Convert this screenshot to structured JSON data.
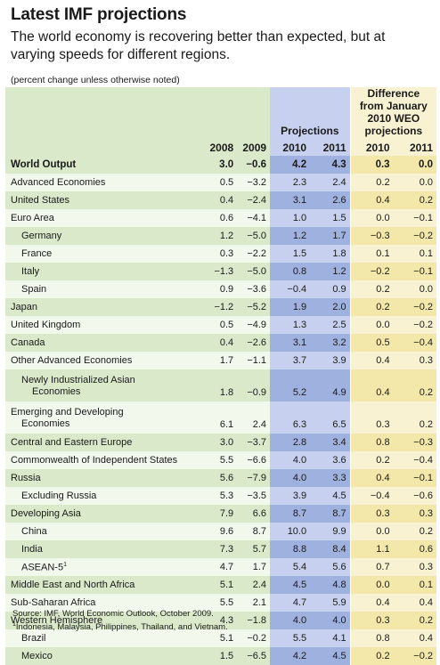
{
  "title": "Latest IMF projections",
  "subtitle": "The world economy is recovering better than expected, but at varying speeds for different regions.",
  "note": "(percent change unless otherwise noted)",
  "headers": {
    "projections": "Projections",
    "difference": "Difference from January 2010 WEO projections",
    "y2008": "2008",
    "y2009": "2009",
    "y2010": "2010",
    "y2011": "2011",
    "d2010": "2010",
    "d2011": "2011"
  },
  "rows": [
    {
      "label": "World Output",
      "v2008": "3.0",
      "v2009": "−0.6",
      "p2010": "4.2",
      "p2011": "4.3",
      "d2010": "0.3",
      "d2011": "0.0"
    },
    {
      "label": "Advanced Economies",
      "v2008": "0.5",
      "v2009": "−3.2",
      "p2010": "2.3",
      "p2011": "2.4",
      "d2010": "0.2",
      "d2011": "0.0"
    },
    {
      "label": "United States",
      "v2008": "0.4",
      "v2009": "−2.4",
      "p2010": "3.1",
      "p2011": "2.6",
      "d2010": "0.4",
      "d2011": "0.2"
    },
    {
      "label": "Euro Area",
      "v2008": "0.6",
      "v2009": "−4.1",
      "p2010": "1.0",
      "p2011": "1.5",
      "d2010": "0.0",
      "d2011": "−0.1"
    },
    {
      "label": "Germany",
      "v2008": "1.2",
      "v2009": "−5.0",
      "p2010": "1.2",
      "p2011": "1.7",
      "d2010": "−0.3",
      "d2011": "−0.2"
    },
    {
      "label": "France",
      "v2008": "0.3",
      "v2009": "−2.2",
      "p2010": "1.5",
      "p2011": "1.8",
      "d2010": "0.1",
      "d2011": "0.1"
    },
    {
      "label": "Italy",
      "v2008": "−1.3",
      "v2009": "−5.0",
      "p2010": "0.8",
      "p2011": "1.2",
      "d2010": "−0.2",
      "d2011": "−0.1"
    },
    {
      "label": "Spain",
      "v2008": "0.9",
      "v2009": "−3.6",
      "p2010": "−0.4",
      "p2011": "0.9",
      "d2010": "0.2",
      "d2011": "0.0"
    },
    {
      "label": "Japan",
      "v2008": "−1.2",
      "v2009": "−5.2",
      "p2010": "1.9",
      "p2011": "2.0",
      "d2010": "0.2",
      "d2011": "−0.2"
    },
    {
      "label": "United Kingdom",
      "v2008": "0.5",
      "v2009": "−4.9",
      "p2010": "1.3",
      "p2011": "2.5",
      "d2010": "0.0",
      "d2011": "−0.2"
    },
    {
      "label": "Canada",
      "v2008": "0.4",
      "v2009": "−2.6",
      "p2010": "3.1",
      "p2011": "3.2",
      "d2010": "0.5",
      "d2011": "−0.4"
    },
    {
      "label": "Other Advanced Economies",
      "v2008": "1.7",
      "v2009": "−1.1",
      "p2010": "3.7",
      "p2011": "3.9",
      "d2010": "0.4",
      "d2011": "0.3"
    },
    {
      "label_line1": "Newly Industrialized Asian",
      "label_line2": "Economies",
      "v2008": "1.8",
      "v2009": "−0.9",
      "p2010": "5.2",
      "p2011": "4.9",
      "d2010": "0.4",
      "d2011": "0.2"
    },
    {
      "label_line1": "Emerging and Developing",
      "label_line2": "Economies",
      "v2008": "6.1",
      "v2009": "2.4",
      "p2010": "6.3",
      "p2011": "6.5",
      "d2010": "0.3",
      "d2011": "0.2"
    },
    {
      "label": "Central and Eastern Europe",
      "v2008": "3.0",
      "v2009": "−3.7",
      "p2010": "2.8",
      "p2011": "3.4",
      "d2010": "0.8",
      "d2011": "−0.3"
    },
    {
      "label": "Commonwealth of Independent States",
      "v2008": "5.5",
      "v2009": "−6.6",
      "p2010": "4.0",
      "p2011": "3.6",
      "d2010": "0.2",
      "d2011": "−0.4"
    },
    {
      "label": "Russia",
      "v2008": "5.6",
      "v2009": "−7.9",
      "p2010": "4.0",
      "p2011": "3.3",
      "d2010": "0.4",
      "d2011": "−0.1"
    },
    {
      "label": "Excluding Russia",
      "v2008": "5.3",
      "v2009": "−3.5",
      "p2010": "3.9",
      "p2011": "4.5",
      "d2010": "−0.4",
      "d2011": "−0.6"
    },
    {
      "label": "Developing Asia",
      "v2008": "7.9",
      "v2009": "6.6",
      "p2010": "8.7",
      "p2011": "8.7",
      "d2010": "0.3",
      "d2011": "0.3"
    },
    {
      "label": "China",
      "v2008": "9.6",
      "v2009": "8.7",
      "p2010": "10.0",
      "p2011": "9.9",
      "d2010": "0.0",
      "d2011": "0.2"
    },
    {
      "label": "India",
      "v2008": "7.3",
      "v2009": "5.7",
      "p2010": "8.8",
      "p2011": "8.4",
      "d2010": "1.1",
      "d2011": "0.6"
    },
    {
      "label": "ASEAN-5",
      "sup": "1",
      "v2008": "4.7",
      "v2009": "1.7",
      "p2010": "5.4",
      "p2011": "5.6",
      "d2010": "0.7",
      "d2011": "0.3"
    },
    {
      "label": "Middle East and North Africa",
      "v2008": "5.1",
      "v2009": "2.4",
      "p2010": "4.5",
      "p2011": "4.8",
      "d2010": "0.0",
      "d2011": "0.1"
    },
    {
      "label": "Sub-Saharan Africa",
      "v2008": "5.5",
      "v2009": "2.1",
      "p2010": "4.7",
      "p2011": "5.9",
      "d2010": "0.4",
      "d2011": "0.4"
    },
    {
      "label": "Western Hemisphere",
      "v2008": "4.3",
      "v2009": "−1.8",
      "p2010": "4.0",
      "p2011": "4.0",
      "d2010": "0.3",
      "d2011": "0.2"
    },
    {
      "label": "Brazil",
      "v2008": "5.1",
      "v2009": "−0.2",
      "p2010": "5.5",
      "p2011": "4.1",
      "d2010": "0.8",
      "d2011": "0.4"
    },
    {
      "label": "Mexico",
      "v2008": "1.5",
      "v2009": "−6.5",
      "p2010": "4.2",
      "p2011": "4.5",
      "d2010": "0.2",
      "d2011": "−0.2"
    }
  ],
  "source": "Source: IMF, World Economic Outlook, October 2009.",
  "footnote_mark": "1",
  "footnote": "Indonesia, Malaysia, Philippines, Thailand, and Vietnam."
}
